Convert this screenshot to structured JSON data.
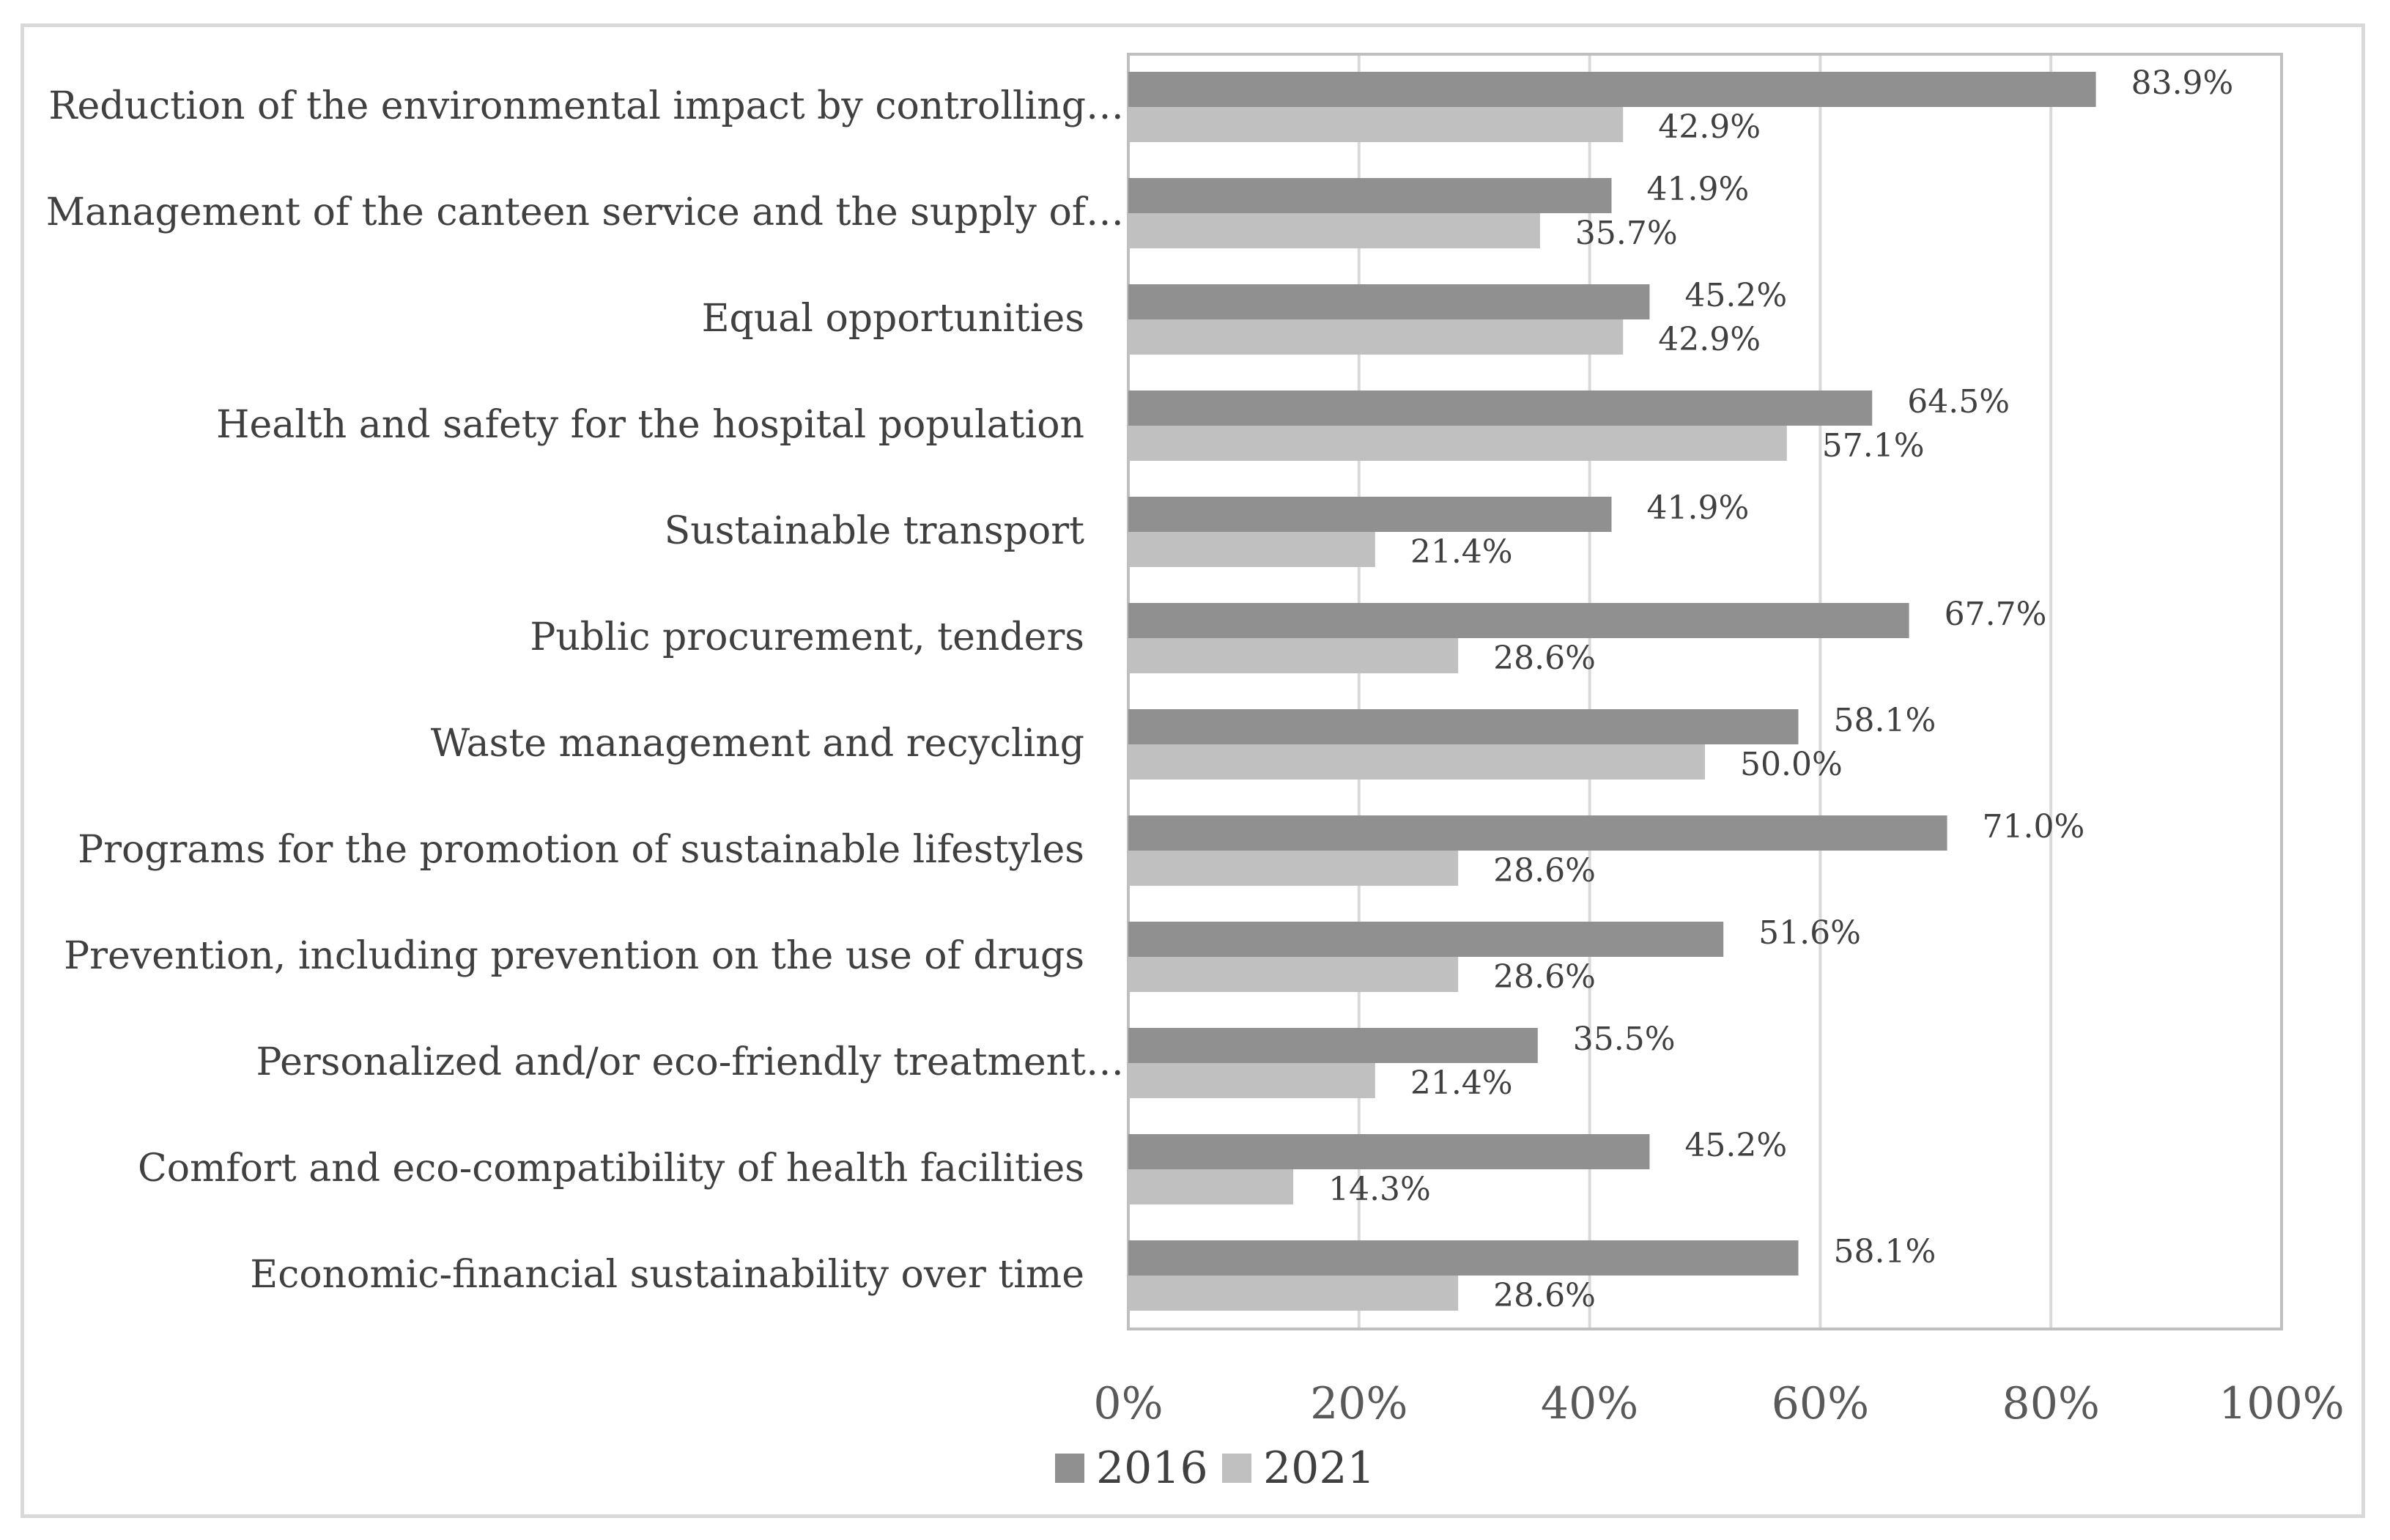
{
  "chart_data": {
    "type": "bar",
    "orientation": "horizontal",
    "title": "",
    "xlabel": "",
    "ylabel": "",
    "xlim": [
      0,
      100
    ],
    "categories": [
      "Reduction of the environmental impact by controlling…",
      "Management of the canteen service and the supply of…",
      "Equal opportunities",
      "Health and safety for the hospital population",
      "Sustainable transport",
      "Public procurement, tenders",
      "Waste management and recycling",
      "Programs for the promotion of sustainable lifestyles",
      "Prevention, including prevention on the use of drugs",
      "Personalized and/or eco-friendly treatment…",
      "Comfort and eco-compatibility of health facilities",
      "Economic-financial sustainability over time"
    ],
    "series": [
      {
        "name": "2016",
        "color": "#909090",
        "values": [
          83.9,
          41.9,
          45.2,
          64.5,
          41.9,
          67.7,
          58.1,
          71.0,
          51.6,
          35.5,
          45.2,
          58.1
        ],
        "labels": [
          "83.9%",
          "41.9%",
          "45.2%",
          "64.5%",
          "41.9%",
          "67.7%",
          "58.1%",
          "71.0%",
          "51.6%",
          "35.5%",
          "45.2%",
          "58.1%"
        ]
      },
      {
        "name": "2021",
        "color": "#c0c0c0",
        "values": [
          42.9,
          35.7,
          42.9,
          57.1,
          21.4,
          28.6,
          50.0,
          28.6,
          28.6,
          21.4,
          14.3,
          28.6
        ],
        "labels": [
          "42.9%",
          "35.7%",
          "42.9%",
          "57.1%",
          "21.4%",
          "28.6%",
          "50.0%",
          "28.6%",
          "28.6%",
          "21.4%",
          "14.3%",
          "28.6%"
        ]
      }
    ],
    "x_ticks": [
      "0%",
      "20%",
      "40%",
      "60%",
      "80%",
      "100%"
    ],
    "x_tick_values": [
      0,
      20,
      40,
      60,
      80,
      100
    ],
    "grid": true,
    "legend": {
      "position": "bottom",
      "entries": [
        "2016",
        "2021"
      ]
    }
  }
}
